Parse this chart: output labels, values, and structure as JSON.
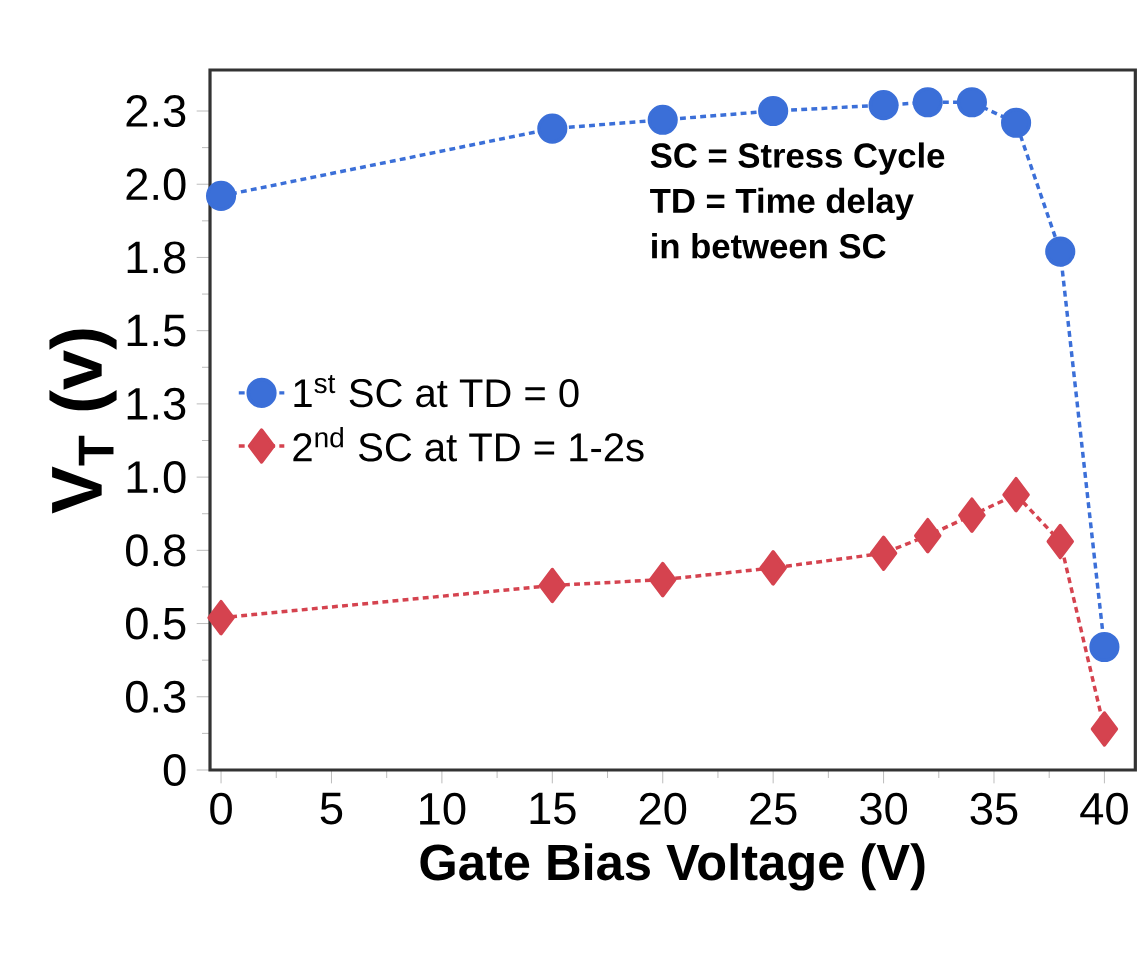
{
  "chart_data": {
    "type": "line",
    "xlabel": "Gate Bias Voltage (V)",
    "ylabel": "V$_{T}$ (v)",
    "xlim": [
      -0.5,
      41.4
    ],
    "ylim": [
      0,
      2.39
    ],
    "xticks": [
      0,
      5,
      10,
      15,
      20,
      25,
      30,
      35,
      40
    ],
    "yticks": [
      {
        "value": 0,
        "label": "0"
      },
      {
        "value": 0.25,
        "label": "0.3"
      },
      {
        "value": 0.5,
        "label": "0.5"
      },
      {
        "value": 0.75,
        "label": "0.8"
      },
      {
        "value": 1.0,
        "label": "1.0"
      },
      {
        "value": 1.25,
        "label": "1.3"
      },
      {
        "value": 1.5,
        "label": "1.5"
      },
      {
        "value": 1.75,
        "label": "1.8"
      },
      {
        "value": 2.0,
        "label": "2.0"
      },
      {
        "value": 2.25,
        "label": "2.3"
      }
    ],
    "x": [
      0,
      15,
      20,
      25,
      30,
      32,
      34,
      36,
      38,
      40
    ],
    "series": [
      {
        "name": "1$^{st}$ SC at TD = 0",
        "color": "#3b6fd8",
        "marker": "circle",
        "line_style": "dotted",
        "values": [
          1.96,
          2.19,
          2.22,
          2.25,
          2.27,
          2.28,
          2.28,
          2.21,
          1.77,
          0.42
        ]
      },
      {
        "name": "2$^{nd}$ SC at TD = 1-2s",
        "color": "#d5434f",
        "marker": "diamond",
        "line_style": "dotted",
        "values": [
          0.52,
          0.63,
          0.65,
          0.69,
          0.74,
          0.8,
          0.87,
          0.94,
          0.78,
          0.14
        ]
      }
    ],
    "annotations": [
      "SC = Stress Cycle",
      "TD = Time delay",
      "in between SC"
    ],
    "grid": false,
    "legend": "left"
  }
}
